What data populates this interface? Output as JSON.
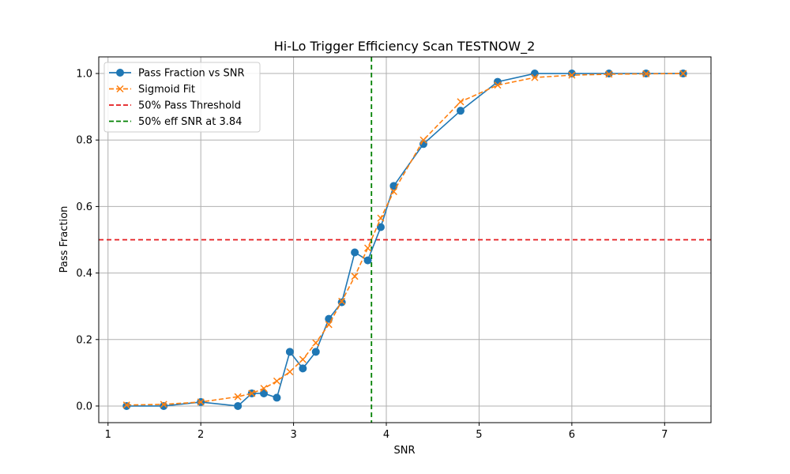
{
  "chart_data": {
    "type": "line",
    "title": "Hi-Lo Trigger Efficiency Scan TESTNOW_2",
    "xlabel": "SNR",
    "ylabel": "Pass Fraction",
    "xlim": [
      0.9,
      7.5
    ],
    "ylim": [
      -0.05,
      1.05
    ],
    "xticks": [
      1,
      2,
      3,
      4,
      5,
      6,
      7
    ],
    "yticks": [
      0.0,
      0.2,
      0.4,
      0.6,
      0.8,
      1.0
    ],
    "grid": true,
    "legend_position": "top-left",
    "series": [
      {
        "name": "Pass Fraction vs SNR",
        "style": "solid-circle",
        "color": "#1f77b4",
        "x": [
          1.2,
          1.6,
          2.0,
          2.4,
          2.55,
          2.68,
          2.82,
          2.96,
          3.1,
          3.24,
          3.38,
          3.52,
          3.66,
          3.8,
          3.94,
          4.08,
          4.4,
          4.8,
          5.2,
          5.6,
          6.0,
          6.4,
          6.8,
          7.2
        ],
        "y": [
          0.0,
          0.0,
          0.012,
          0.0,
          0.038,
          0.038,
          0.025,
          0.163,
          0.113,
          0.163,
          0.262,
          0.312,
          0.462,
          0.438,
          0.538,
          0.662,
          0.788,
          0.888,
          0.975,
          1.0,
          1.0,
          1.0,
          1.0,
          1.0
        ]
      },
      {
        "name": "Sigmoid Fit",
        "style": "dashed-x",
        "color": "#ff7f0e",
        "x": [
          1.2,
          1.6,
          2.0,
          2.4,
          2.55,
          2.68,
          2.82,
          2.96,
          3.1,
          3.24,
          3.38,
          3.52,
          3.66,
          3.8,
          3.94,
          4.08,
          4.4,
          4.8,
          5.2,
          5.6,
          6.0,
          6.4,
          6.8,
          7.2
        ],
        "y": [
          0.003,
          0.005,
          0.012,
          0.028,
          0.038,
          0.053,
          0.075,
          0.103,
          0.14,
          0.19,
          0.245,
          0.315,
          0.39,
          0.475,
          0.565,
          0.645,
          0.8,
          0.915,
          0.965,
          0.988,
          0.995,
          0.998,
          0.999,
          1.0
        ]
      }
    ],
    "hlines": [
      {
        "name": "50% Pass Threshold",
        "y": 0.5,
        "color": "#e41a1c",
        "style": "dashed"
      }
    ],
    "vlines": [
      {
        "name": "50% eff SNR at 3.84",
        "x": 3.84,
        "color": "#008000",
        "style": "dashed"
      }
    ]
  }
}
